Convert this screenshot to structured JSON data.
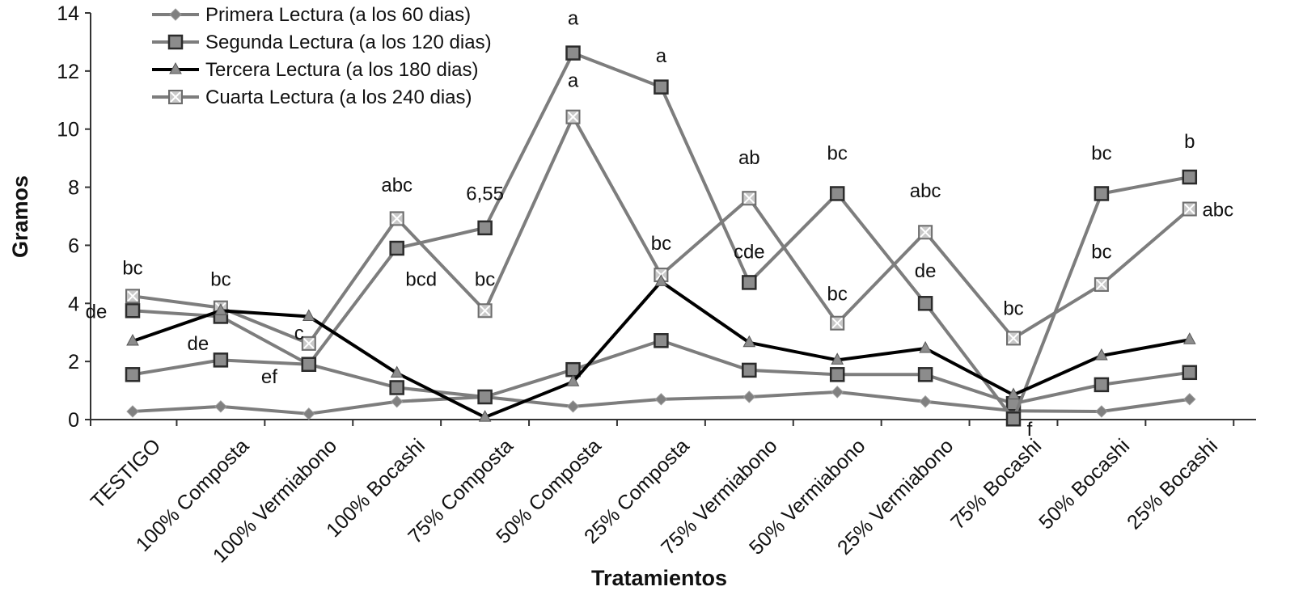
{
  "chart_data": {
    "type": "line",
    "title": "",
    "xlabel": "Tratamientos",
    "ylabel": "Gramos",
    "ylim": [
      0,
      14
    ],
    "yticks": [
      0,
      2,
      4,
      6,
      8,
      10,
      12,
      14
    ],
    "grid": false,
    "legend_position": "top-left",
    "categories": [
      "TESTIGO",
      "100%  Composta",
      "100%  Vermiabono",
      "100%  Bocashi",
      "75% Composta",
      "50% Composta",
      "25% Composta",
      "75% Vermiabono",
      "50% Vermiabono",
      "25% Vermiabono",
      "75% Bocashi",
      "50% Bocashi",
      "25% Bocashi"
    ],
    "series": [
      {
        "name": "Primera Lectura (a los 60 dias)",
        "marker": "diamond",
        "color": "#808080",
        "values": [
          0.28,
          0.45,
          0.2,
          0.62,
          0.78,
          0.45,
          0.7,
          0.78,
          0.95,
          0.62,
          0.3,
          0.28,
          0.7
        ]
      },
      {
        "name": "Segunda Lectura (a los 120 dias)",
        "marker": "square",
        "color": "#808080",
        "values": [
          1.55,
          2.05,
          1.9,
          1.1,
          0.78,
          1.72,
          2.72,
          1.7,
          1.55,
          1.55,
          0.55,
          1.2,
          1.62
        ]
      },
      {
        "name": "Tercera Lectura (a los 180 dias)",
        "marker": "triangle",
        "color": "#000000",
        "values": [
          2.7,
          3.75,
          3.55,
          1.6,
          0.08,
          1.3,
          4.75,
          2.65,
          2.05,
          2.45,
          0.85,
          2.2,
          2.75
        ]
      },
      {
        "name": "Cuarta Lectura (a los 240 dias)",
        "marker": "xsquare",
        "color": "#808080",
        "values": [
          4.25,
          3.85,
          2.62,
          6.92,
          3.75,
          10.42,
          4.98,
          7.62,
          3.32,
          6.45,
          2.8,
          4.65,
          7.25
        ]
      },
      {
        "name": "",
        "marker": "square",
        "color": "#808080",
        "values": [
          3.75,
          3.55,
          1.9,
          5.9,
          6.6,
          12.62,
          11.45,
          4.72,
          7.78,
          4.0,
          0.02,
          7.78,
          8.35
        ]
      }
    ],
    "annotations": [
      {
        "text": "bc",
        "category": 0,
        "y": 5.0
      },
      {
        "text": "de",
        "category": 0,
        "y": 3.5,
        "dx": -45
      },
      {
        "text": "bc",
        "category": 1,
        "y": 4.6
      },
      {
        "text": "de",
        "category": 1,
        "y": 2.4,
        "dx": -28
      },
      {
        "text": "ef",
        "category": 1,
        "y": 1.25,
        "dx": 60
      },
      {
        "text": "c",
        "category": 2,
        "y": 2.75,
        "dx": -12
      },
      {
        "text": "abc",
        "category": 3,
        "y": 7.85
      },
      {
        "text": "bcd",
        "category": 3,
        "y": 4.6,
        "dx": 30
      },
      {
        "text": "6,55",
        "category": 4,
        "y": 7.55
      },
      {
        "text": "bc",
        "category": 4,
        "y": 4.6
      },
      {
        "text": "a",
        "category": 5,
        "y": 13.6
      },
      {
        "text": "a",
        "category": 5,
        "y": 11.45
      },
      {
        "text": "a",
        "category": 6,
        "y": 12.3
      },
      {
        "text": "bc",
        "category": 6,
        "y": 5.85
      },
      {
        "text": "ab",
        "category": 7,
        "y": 8.8
      },
      {
        "text": "cde",
        "category": 7,
        "y": 5.55
      },
      {
        "text": "bc",
        "category": 8,
        "y": 8.95
      },
      {
        "text": "bc",
        "category": 8,
        "y": 4.1
      },
      {
        "text": "abc",
        "category": 9,
        "y": 7.65
      },
      {
        "text": "de",
        "category": 9,
        "y": 4.9
      },
      {
        "text": "bc",
        "category": 10,
        "y": 3.6
      },
      {
        "text": "f",
        "category": 10,
        "y": -0.55,
        "dx": 20
      },
      {
        "text": "bc",
        "category": 11,
        "y": 8.95
      },
      {
        "text": "bc",
        "category": 11,
        "y": 5.55
      },
      {
        "text": "b",
        "category": 12,
        "y": 9.35
      },
      {
        "text": "abc",
        "category": 12,
        "y": 7.0,
        "dx": 35
      }
    ]
  }
}
